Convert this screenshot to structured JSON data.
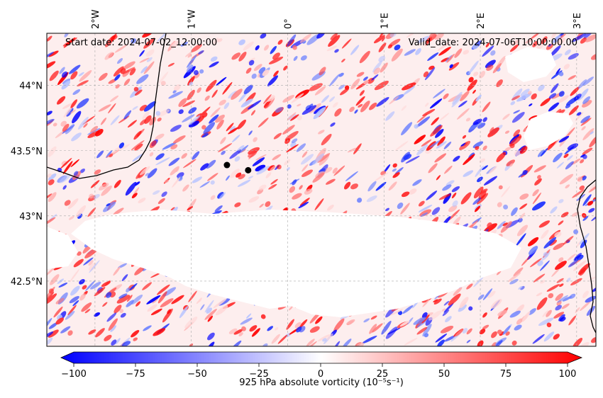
{
  "map": {
    "start_date": "Start date: 2024-07-02_12:00:00",
    "valid_date": "Valid_date: 2024-07-06T10:00:00.00",
    "lon_ticks": [
      {
        "label": "2°W",
        "lon": -2
      },
      {
        "label": "1°W",
        "lon": -1
      },
      {
        "label": "0°",
        "lon": 0
      },
      {
        "label": "1°E",
        "lon": 1
      },
      {
        "label": "2°E",
        "lon": 2
      },
      {
        "label": "3°E",
        "lon": 3
      }
    ],
    "lat_ticks": [
      {
        "label": "44°N",
        "lat": 44.0
      },
      {
        "label": "43.5°N",
        "lat": 43.5
      },
      {
        "label": "43°N",
        "lat": 43.0
      },
      {
        "label": "42.5°N",
        "lat": 42.5
      }
    ],
    "lon_range": [
      -2.5,
      3.2
    ],
    "lat_range": [
      42.0,
      44.4
    ],
    "markers": [
      {
        "lon": -0.63,
        "lat": 43.39
      },
      {
        "lon": -0.41,
        "lat": 43.35
      }
    ],
    "field_colors": {
      "negative": "#0000ff",
      "zero": "#ffffff",
      "positive": "#ff0000"
    }
  },
  "colorbar": {
    "label": "925 hPa absolute vorticity (10⁻⁵s⁻¹)",
    "min": -100,
    "max": 100,
    "ticks": [
      {
        "label": "−100",
        "value": -100
      },
      {
        "label": "−75",
        "value": -75
      },
      {
        "label": "−50",
        "value": -50
      },
      {
        "label": "−25",
        "value": -25
      },
      {
        "label": "0",
        "value": 0
      },
      {
        "label": "25",
        "value": 25
      },
      {
        "label": "50",
        "value": 50
      },
      {
        "label": "75",
        "value": 75
      },
      {
        "label": "100",
        "value": 100
      }
    ]
  }
}
